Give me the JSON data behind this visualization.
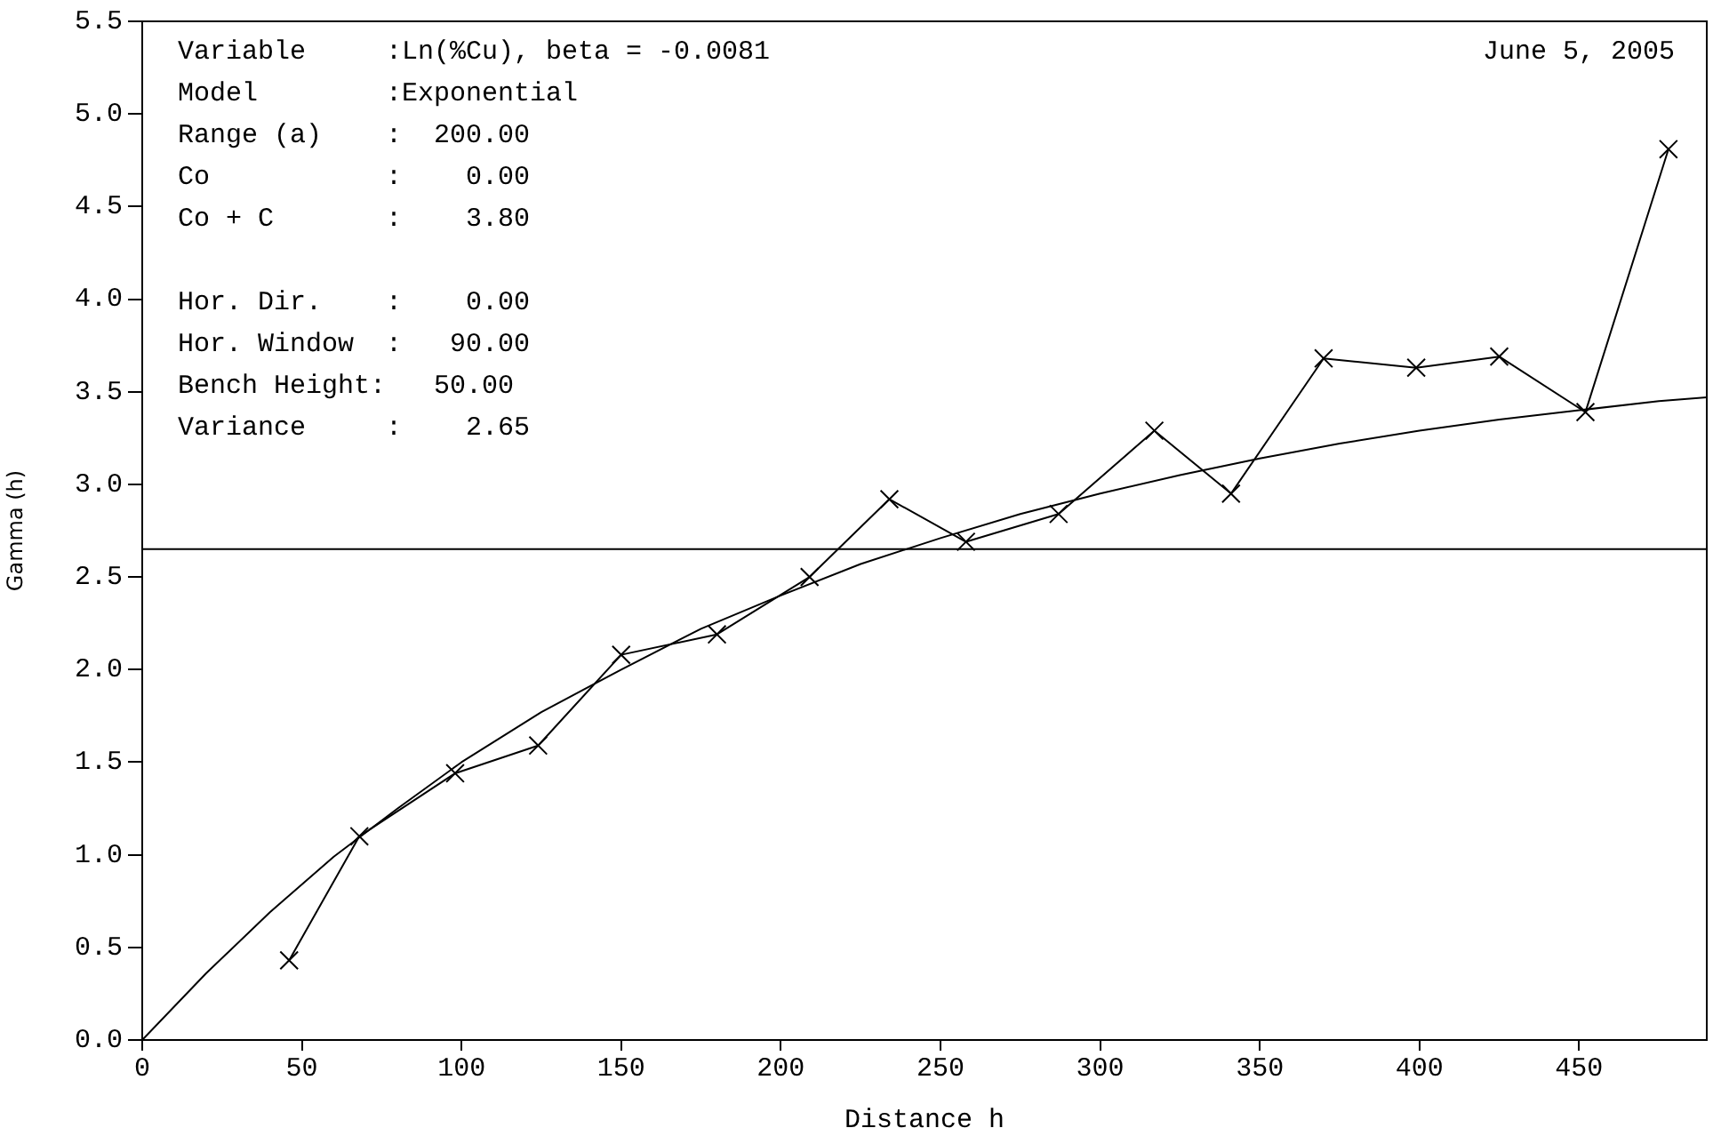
{
  "chart_data": {
    "type": "line",
    "xlabel": "Distance h",
    "ylabel": "Gamma (h)",
    "xlim": [
      0,
      490
    ],
    "xticks": [
      0,
      50,
      100,
      150,
      200,
      250,
      300,
      350,
      400,
      450
    ],
    "ylim": [
      0,
      5.5
    ],
    "yticks": [
      {
        "value": 0,
        "label": "0.0"
      },
      0.5,
      {
        "value": 1,
        "label": "1.0"
      },
      1.5,
      {
        "value": 2,
        "label": "2.0"
      },
      2.5,
      {
        "value": 3,
        "label": "3.0"
      },
      3.5,
      {
        "value": 4,
        "label": "4.0"
      },
      4.5,
      {
        "value": 5,
        "label": "5.0"
      },
      5.5
    ],
    "grid": false,
    "legend": false,
    "series": [
      {
        "type": "line",
        "color": "#000000",
        "marker": "cross",
        "x": [
          46,
          68,
          98,
          124,
          150,
          180,
          209,
          234,
          258,
          287,
          317,
          341,
          370,
          399,
          425,
          452,
          478
        ],
        "values": [
          0.43,
          1.1,
          1.44,
          1.59,
          2.08,
          2.19,
          2.5,
          2.92,
          2.69,
          2.84,
          3.29,
          2.95,
          3.68,
          3.63,
          3.69,
          3.39,
          4.81
        ]
      },
      {
        "type": "line",
        "color": "#000000",
        "marker": "none",
        "x": [
          0,
          20,
          40,
          60,
          80,
          100,
          125,
          150,
          175,
          200,
          225,
          250,
          275,
          300,
          325,
          350,
          375,
          400,
          425,
          450,
          475,
          490
        ],
        "values": [
          0,
          0.36,
          0.69,
          0.99,
          1.25,
          1.5,
          1.77,
          2.0,
          2.22,
          2.4,
          2.57,
          2.71,
          2.84,
          2.95,
          3.05,
          3.14,
          3.22,
          3.29,
          3.35,
          3.4,
          3.45,
          3.47
        ]
      }
    ],
    "ref_lines": [
      {
        "axis": "y",
        "value": 2.65,
        "color": "#000000",
        "line_style": "solid"
      }
    ],
    "annotations": [
      "Variable     :Ln(%Cu), beta = -0.0081",
      "Model        :Exponential",
      "Range (a)    :  200.00",
      "Co           :    0.00",
      "Co + C       :    3.80",
      "Hor. Dir.    :    0.00",
      "Hor. Window  :   90.00",
      "Bench Height:   50.00",
      "Variance     :    2.65",
      "June 5, 2005"
    ]
  }
}
